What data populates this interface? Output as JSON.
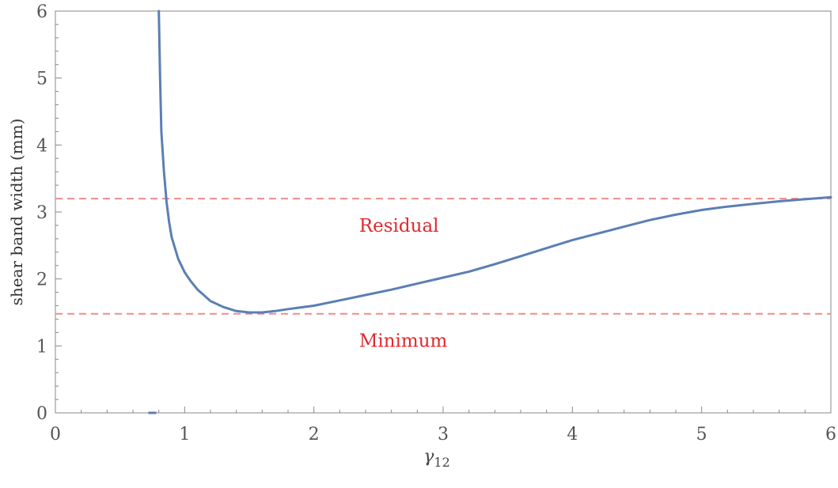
{
  "chart_data": {
    "type": "line",
    "title": "",
    "xlabel": "γ12",
    "ylabel": "shear band width (mm)",
    "xlim": [
      0,
      6
    ],
    "ylim": [
      0,
      6
    ],
    "xticks": [
      "0",
      "1",
      "2",
      "3",
      "4",
      "5",
      "6"
    ],
    "yticks": [
      "0",
      "1",
      "2",
      "3",
      "4",
      "5",
      "6"
    ],
    "grid": false,
    "series": [
      {
        "color": "#5b7fb3",
        "points": [
          [
            0.8,
            6.0
          ],
          [
            0.81,
            5.0
          ],
          [
            0.82,
            4.2
          ],
          [
            0.84,
            3.6
          ],
          [
            0.86,
            3.15
          ],
          [
            0.88,
            2.85
          ],
          [
            0.9,
            2.62
          ],
          [
            0.95,
            2.3
          ],
          [
            1.0,
            2.1
          ],
          [
            1.05,
            1.96
          ],
          [
            1.1,
            1.84
          ],
          [
            1.2,
            1.67
          ],
          [
            1.3,
            1.58
          ],
          [
            1.4,
            1.52
          ],
          [
            1.5,
            1.5
          ],
          [
            1.6,
            1.5
          ],
          [
            1.7,
            1.52
          ],
          [
            1.8,
            1.55
          ],
          [
            2.0,
            1.6
          ],
          [
            2.2,
            1.68
          ],
          [
            2.4,
            1.76
          ],
          [
            2.6,
            1.84
          ],
          [
            2.8,
            1.93
          ],
          [
            3.0,
            2.02
          ],
          [
            3.2,
            2.11
          ],
          [
            3.4,
            2.22
          ],
          [
            3.6,
            2.34
          ],
          [
            3.8,
            2.46
          ],
          [
            4.0,
            2.58
          ],
          [
            4.2,
            2.68
          ],
          [
            4.4,
            2.78
          ],
          [
            4.6,
            2.88
          ],
          [
            4.8,
            2.96
          ],
          [
            5.0,
            3.03
          ],
          [
            5.2,
            3.08
          ],
          [
            5.4,
            3.12
          ],
          [
            5.6,
            3.16
          ],
          [
            5.8,
            3.19
          ],
          [
            6.0,
            3.22
          ]
        ]
      }
    ],
    "reference_lines": [
      {
        "label": "Residual",
        "y": 3.2,
        "color": "#f08c8c"
      },
      {
        "label": "Minimum",
        "y": 1.48,
        "color": "#f08c8c"
      }
    ],
    "annotation_color": "#e0282e",
    "marker_stub": {
      "x": 0.75,
      "y": 0,
      "color": "#5b7fb3"
    }
  }
}
